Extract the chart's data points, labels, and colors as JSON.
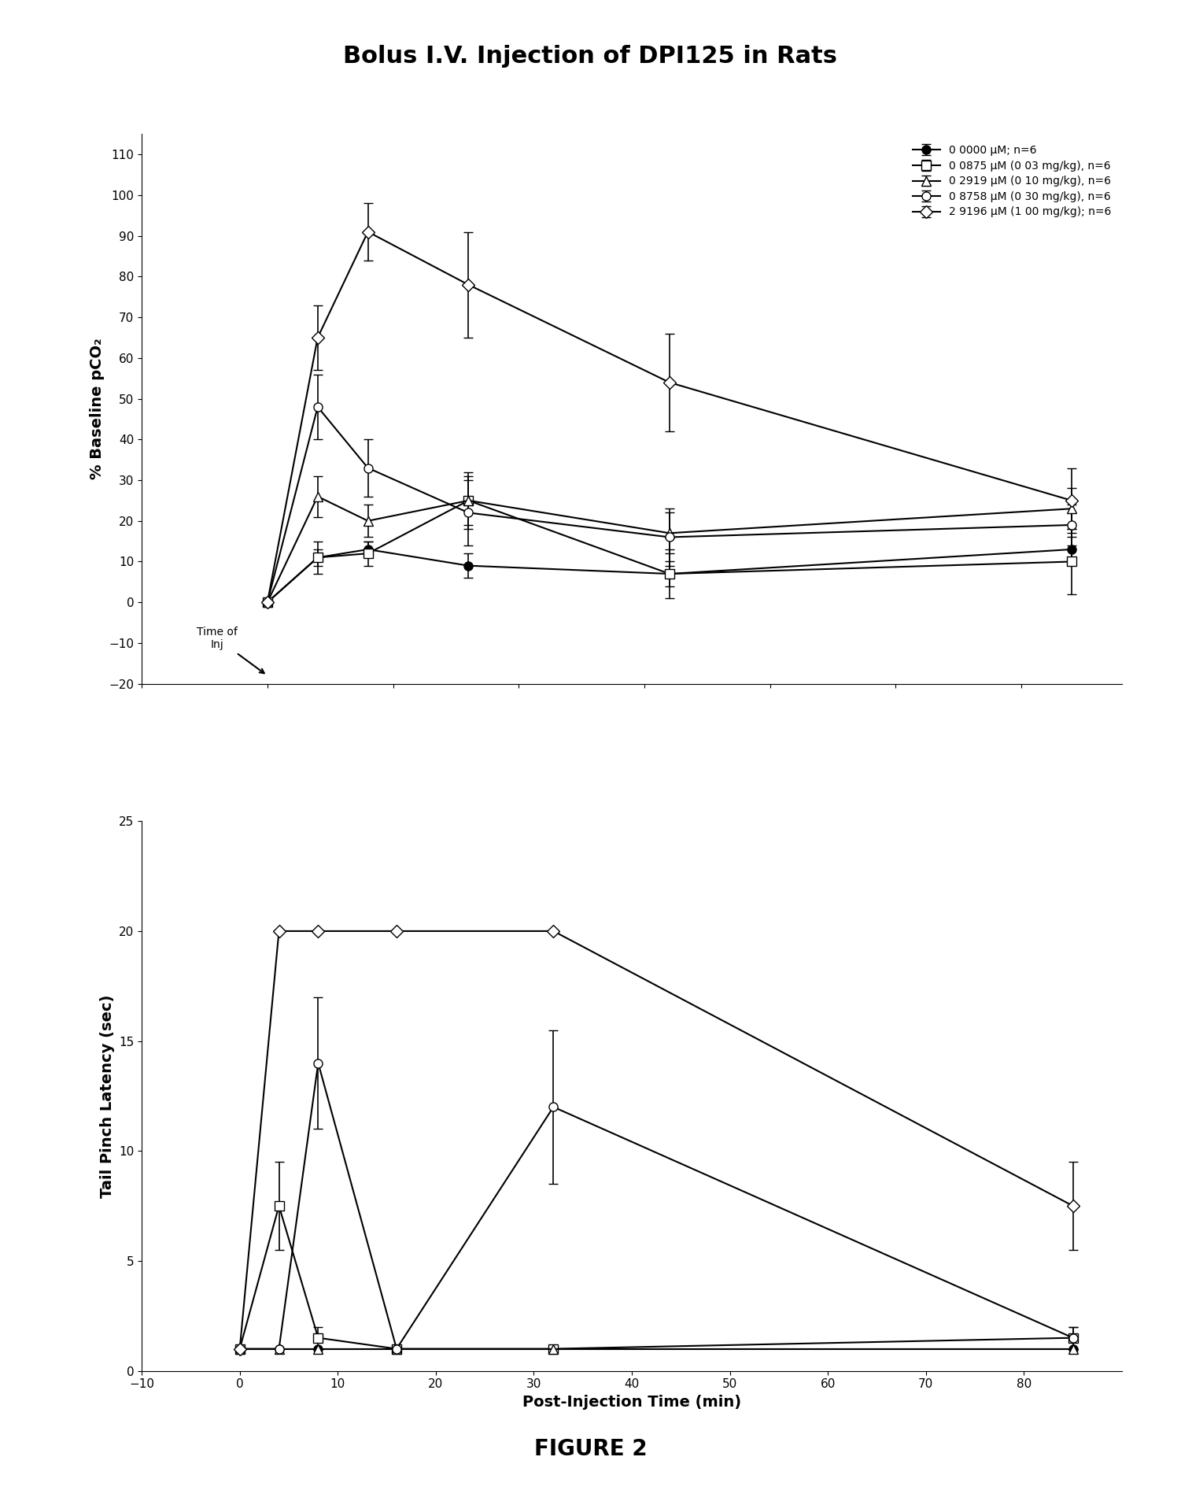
{
  "title": "Bolus I.V. Injection of DPI125 in Rats",
  "figure_label": "FIGURE 2",
  "top_plot": {
    "ylabel": "% Baseline pCO₂",
    "xlim": [
      -10,
      68
    ],
    "ylim": [
      -20,
      115
    ],
    "xticks": [
      -10,
      0,
      10,
      20,
      30,
      40,
      50,
      60
    ],
    "yticks": [
      -20,
      -10,
      0,
      10,
      20,
      30,
      40,
      50,
      60,
      70,
      80,
      90,
      100,
      110
    ],
    "series": [
      {
        "label": "0 0000 μM; n=6",
        "x": [
          0,
          4,
          8,
          16,
          32,
          64
        ],
        "y": [
          0,
          11,
          13,
          9,
          7,
          13
        ],
        "yerr": [
          0,
          2,
          2,
          3,
          3,
          3
        ],
        "marker": "o",
        "fillstyle": "full",
        "markersize": 8
      },
      {
        "label": "0 0875 μM (0 03 mg/kg), n=6",
        "x": [
          0,
          4,
          8,
          16,
          32,
          64
        ],
        "y": [
          0,
          11,
          12,
          25,
          7,
          10
        ],
        "yerr": [
          0,
          4,
          3,
          7,
          6,
          8
        ],
        "marker": "s",
        "fillstyle": "none",
        "markersize": 8
      },
      {
        "label": "0 2919 μM (0 10 mg/kg), n=6",
        "x": [
          0,
          4,
          8,
          16,
          32,
          64
        ],
        "y": [
          0,
          26,
          20,
          25,
          17,
          23
        ],
        "yerr": [
          0,
          5,
          4,
          6,
          5,
          5
        ],
        "marker": "^",
        "fillstyle": "none",
        "markersize": 8
      },
      {
        "label": "0 8758 μM (0 30 mg/kg), n=6",
        "x": [
          0,
          4,
          8,
          16,
          32,
          64
        ],
        "y": [
          0,
          48,
          33,
          22,
          16,
          19
        ],
        "yerr": [
          0,
          8,
          7,
          8,
          7,
          5
        ],
        "marker": "o",
        "fillstyle": "none",
        "markersize": 8
      },
      {
        "label": "2 9196 μM (1 00 mg/kg); n=6",
        "x": [
          0,
          4,
          8,
          16,
          32,
          64
        ],
        "y": [
          0,
          65,
          91,
          78,
          54,
          25
        ],
        "yerr": [
          0,
          8,
          7,
          13,
          12,
          8
        ],
        "marker": "D",
        "fillstyle": "none",
        "markersize": 8
      }
    ]
  },
  "bottom_plot": {
    "ylabel": "Tail Pinch Latency (sec)",
    "xlabel": "Post-Injection Time (min)",
    "xlim": [
      -10,
      90
    ],
    "ylim": [
      0,
      25
    ],
    "xticks": [
      -10,
      0,
      10,
      20,
      30,
      40,
      50,
      60,
      70,
      80
    ],
    "yticks": [
      0,
      5,
      10,
      15,
      20,
      25
    ],
    "series": [
      {
        "label": "0 0000 μM; n=6",
        "x": [
          0,
          4,
          8,
          16,
          32,
          85
        ],
        "y": [
          1,
          1,
          1,
          1,
          1,
          1
        ],
        "yerr": [
          0,
          0,
          0,
          0,
          0,
          0
        ],
        "marker": "o",
        "fillstyle": "full",
        "markersize": 8
      },
      {
        "label": "0 0875 μM (0 03 mg/kg), n=6",
        "x": [
          0,
          4,
          8,
          16,
          32,
          85
        ],
        "y": [
          1,
          7.5,
          1.5,
          1,
          1,
          1.5
        ],
        "yerr": [
          0,
          2,
          0.5,
          0,
          0,
          0.5
        ],
        "marker": "s",
        "fillstyle": "none",
        "markersize": 8
      },
      {
        "label": "0 2919 μM (0 10 mg/kg), n=6",
        "x": [
          0,
          4,
          8,
          16,
          32,
          85
        ],
        "y": [
          1,
          1,
          1,
          1,
          1,
          1
        ],
        "yerr": [
          0,
          0,
          0,
          0,
          0,
          0
        ],
        "marker": "^",
        "fillstyle": "none",
        "markersize": 8
      },
      {
        "label": "0 8758 μM (0 30 mg/kg), n=6",
        "x": [
          0,
          4,
          8,
          16,
          32,
          85
        ],
        "y": [
          1,
          1,
          14,
          1,
          12,
          1.5
        ],
        "yerr": [
          0,
          0,
          3,
          0,
          3.5,
          0.5
        ],
        "marker": "o",
        "fillstyle": "none",
        "markersize": 8
      },
      {
        "label": "2 9196 μM (1 00 mg/kg); n=6",
        "x": [
          0,
          4,
          8,
          16,
          32,
          85
        ],
        "y": [
          1,
          20,
          20,
          20,
          20,
          7.5
        ],
        "yerr": [
          0,
          0,
          0,
          0,
          0,
          2
        ],
        "marker": "D",
        "fillstyle": "none",
        "markersize": 8
      }
    ]
  }
}
